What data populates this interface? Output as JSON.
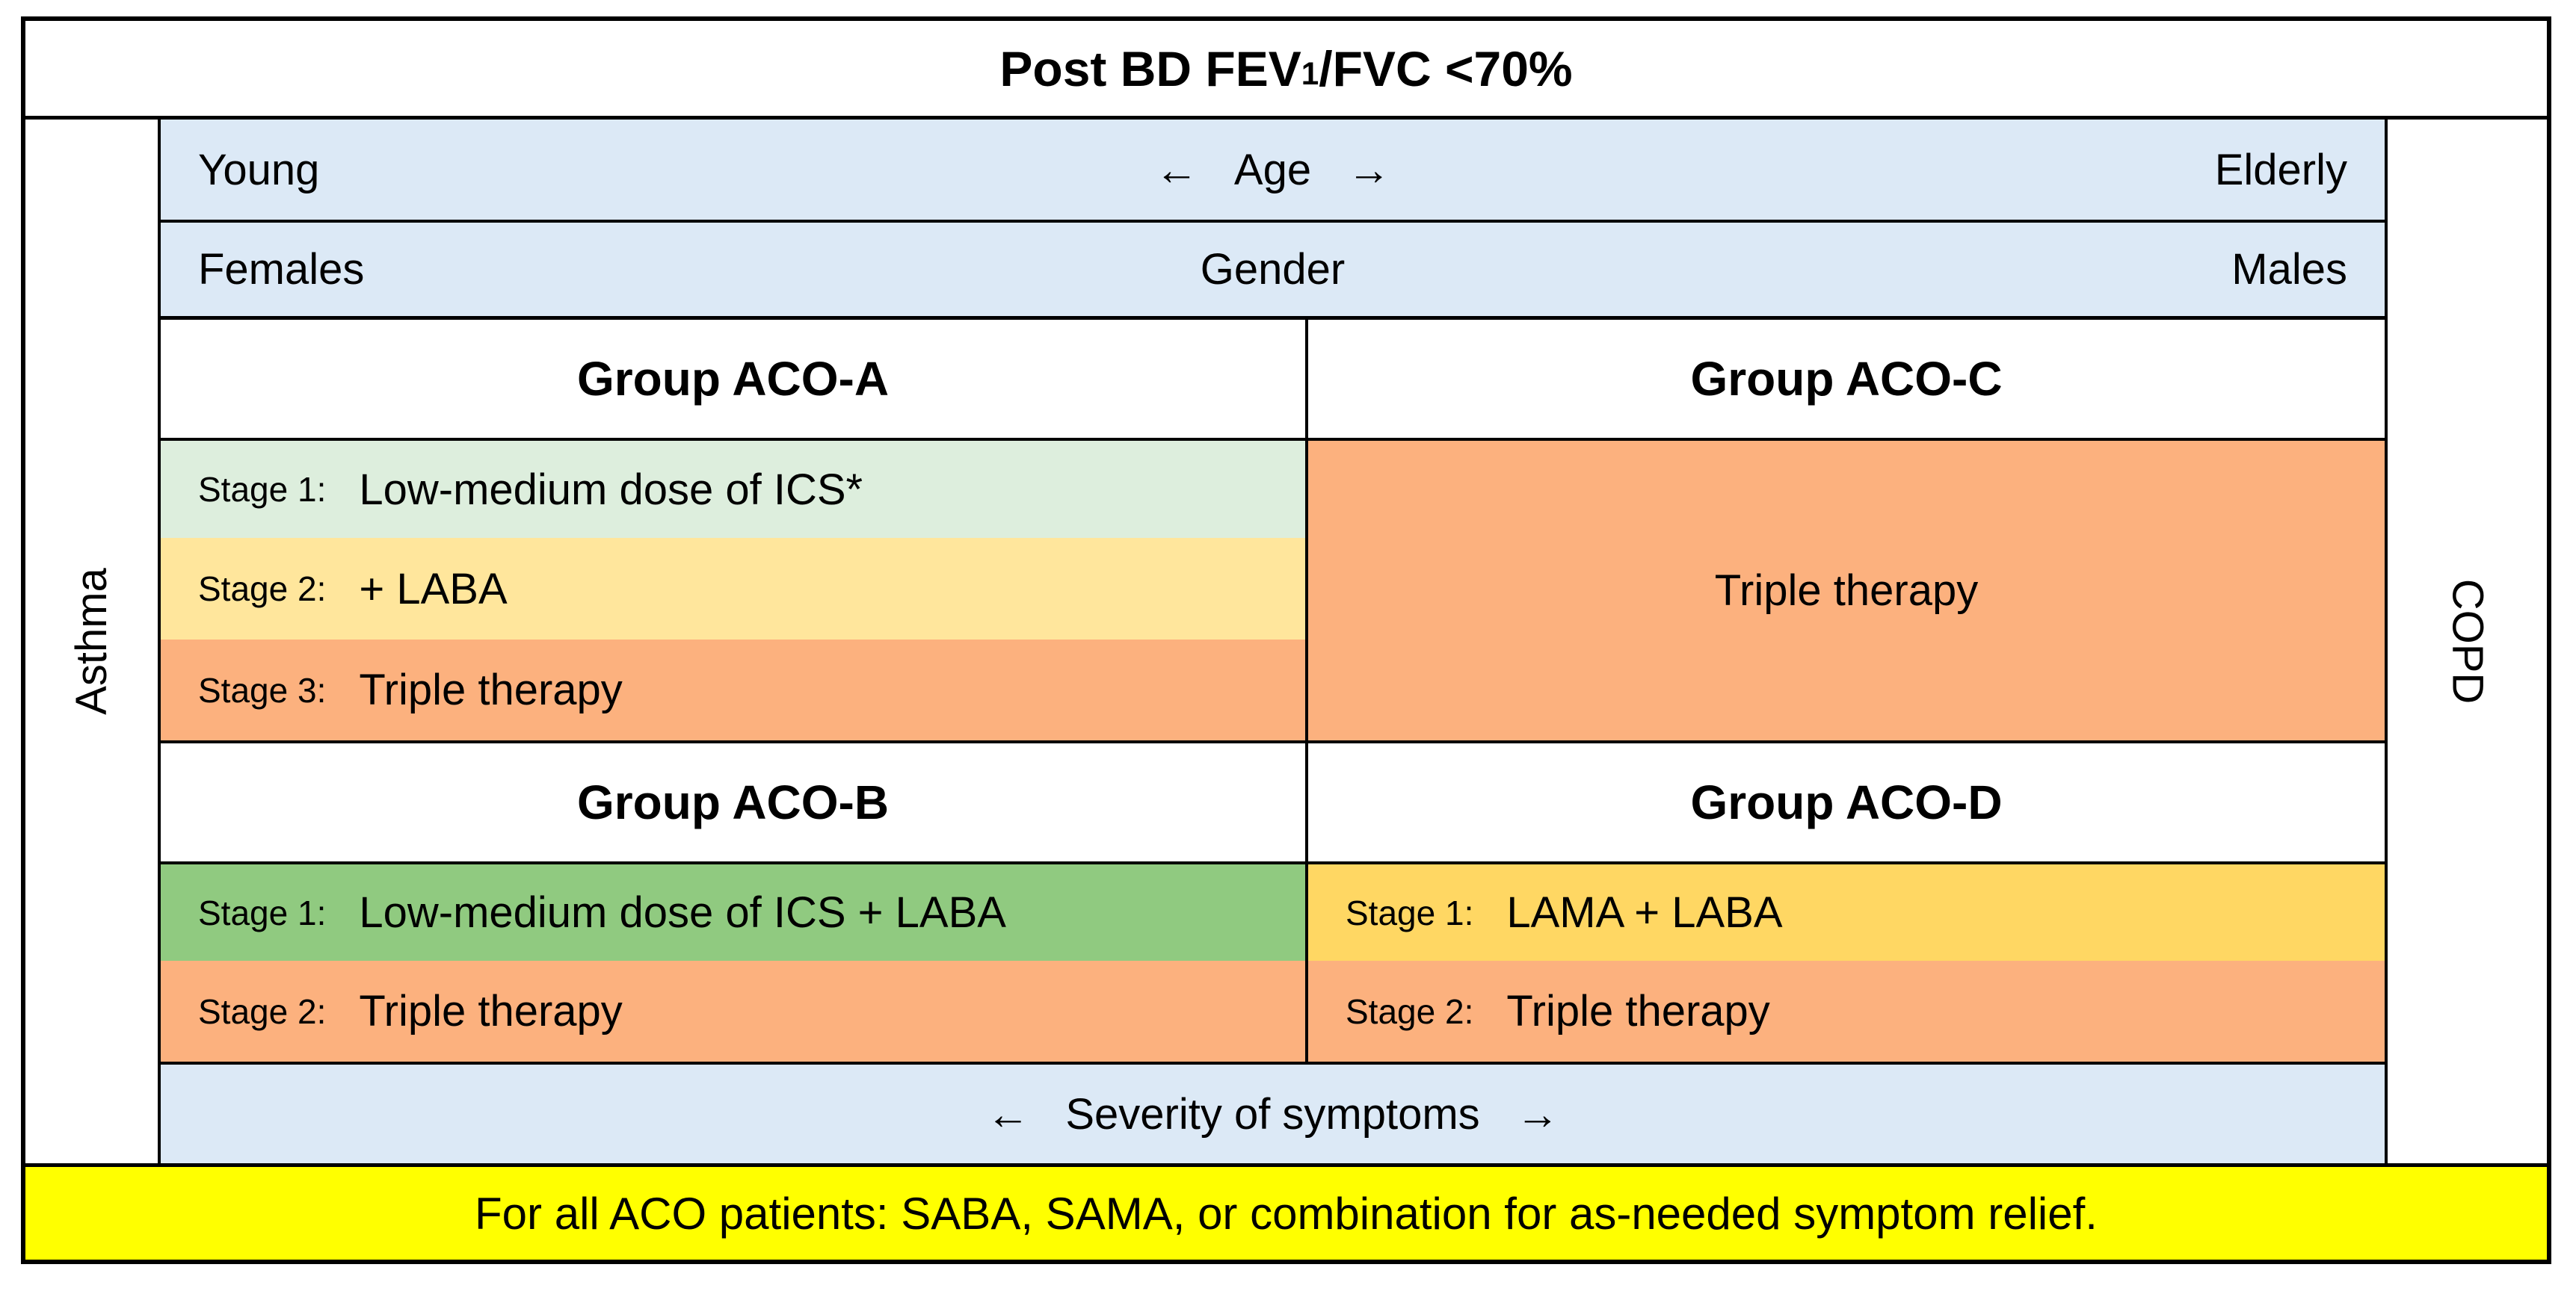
{
  "colors": {
    "border": "#000000",
    "band_blue": "#dce9f6",
    "pale_green": "#ddeedd",
    "pale_yellow": "#ffe69c",
    "orange": "#fcb17e",
    "green": "#90ca80",
    "gold": "#ffd763",
    "footer_yellow": "#ffff00",
    "white": "#ffffff"
  },
  "title": {
    "prefix": "Post BD FEV",
    "subscript": "1",
    "suffix": "/FVC <70%"
  },
  "axes": {
    "age": {
      "left": "Young",
      "center": "Age",
      "right": "Elderly",
      "arrow_left": "←",
      "arrow_right": "→"
    },
    "gender": {
      "left": "Females",
      "center": "Gender",
      "right": "Males"
    },
    "severity": {
      "center": "Severity of symptoms",
      "arrow_left": "←",
      "arrow_right": "→"
    },
    "vertical_left": "Asthma",
    "vertical_right": "COPD"
  },
  "groups": {
    "aco_a": {
      "title": "Group ACO-A",
      "stages": [
        {
          "label": "Stage 1:",
          "therapy": "Low-medium dose of ICS*",
          "color": "#ddeedd"
        },
        {
          "label": "Stage 2:",
          "therapy": "+ LABA",
          "color": "#ffe69c"
        },
        {
          "label": "Stage 3:",
          "therapy": "Triple therapy",
          "color": "#fcb17e"
        }
      ]
    },
    "aco_c": {
      "title": "Group ACO-C",
      "therapy": "Triple therapy",
      "color": "#fcb17e"
    },
    "aco_b": {
      "title": "Group ACO-B",
      "stages": [
        {
          "label": "Stage 1:",
          "therapy": "Low-medium dose of ICS + LABA",
          "color": "#90ca80"
        },
        {
          "label": "Stage 2:",
          "therapy": "Triple therapy",
          "color": "#fcb17e"
        }
      ]
    },
    "aco_d": {
      "title": "Group ACO-D",
      "stages": [
        {
          "label": "Stage 1:",
          "therapy": "LAMA + LABA",
          "color": "#ffd763"
        },
        {
          "label": "Stage 2:",
          "therapy": "Triple therapy",
          "color": "#fcb17e"
        }
      ]
    }
  },
  "footer": {
    "text": "For all ACO patients: SABA, SAMA, or combination for as-needed symptom relief."
  }
}
